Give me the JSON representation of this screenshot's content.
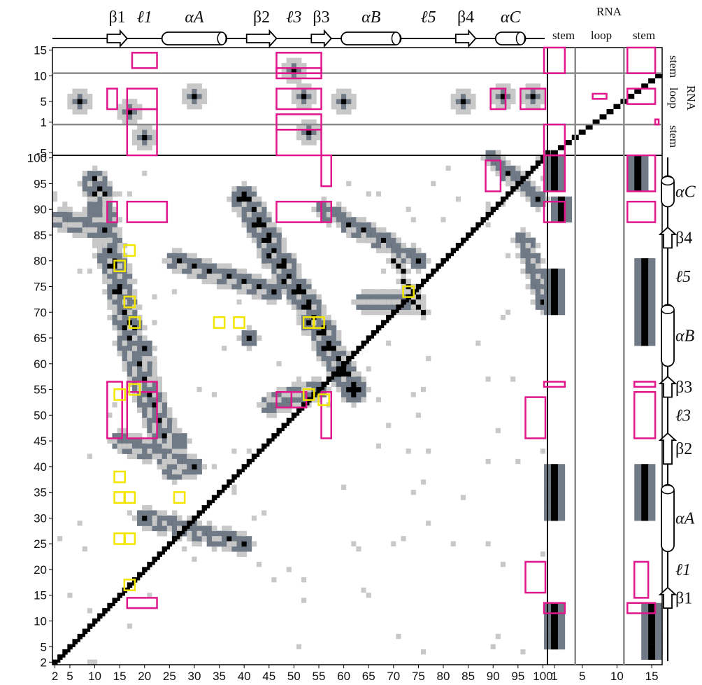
{
  "chart_data": {
    "type": "heatmap",
    "description_of_axes": "protein-residue contact map with RNA contact panels",
    "x_ticks": [
      "2",
      "5",
      "10",
      "15",
      "20",
      "25",
      "30",
      "35",
      "40",
      "45",
      "50",
      "55",
      "60",
      "65",
      "70",
      "75",
      "80",
      "85",
      "90",
      "95",
      "100"
    ],
    "y_ticks": [
      "2",
      "5",
      "10",
      "15",
      "20",
      "25",
      "30",
      "35",
      "40",
      "45",
      "50",
      "55",
      "60",
      "65",
      "70",
      "75",
      "80",
      "85",
      "90",
      "95",
      "100"
    ],
    "rna_x_ticks": [
      "1",
      "5",
      "10",
      "15"
    ],
    "rna_y_ticks": [
      "15",
      "10",
      "5",
      "1",
      "-5"
    ],
    "secondary_structure": [
      {
        "label": "β1",
        "kind": "strand",
        "start": 13,
        "end": 17
      },
      {
        "label": "ℓ1",
        "kind": "loop",
        "start": 18,
        "end": 23
      },
      {
        "label": "αA",
        "kind": "helix",
        "start": 24,
        "end": 37
      },
      {
        "label": "β2",
        "kind": "strand",
        "start": 41,
        "end": 47
      },
      {
        "label": "ℓ3",
        "kind": "loop",
        "start": 48,
        "end": 53
      },
      {
        "label": "β3",
        "kind": "strand",
        "start": 54,
        "end": 58
      },
      {
        "label": "αB",
        "kind": "helix",
        "start": 60,
        "end": 72
      },
      {
        "label": "ℓ5",
        "kind": "loop",
        "start": 74,
        "end": 81
      },
      {
        "label": "β4",
        "kind": "strand",
        "start": 83,
        "end": 87
      },
      {
        "label": "αC",
        "kind": "helix",
        "start": 91,
        "end": 97
      }
    ],
    "rna_regions": [
      "stem",
      "loop",
      "stem"
    ],
    "rna_title": "RNA",
    "contact_levels": [
      "black",
      "dark-gray",
      "light-gray"
    ],
    "upper_triangle_clusters": [
      {
        "i": 88,
        "j": 90,
        "level": "black"
      },
      {
        "i": 90,
        "j": 98,
        "level": "black"
      },
      {
        "i": 75,
        "j": 90,
        "level": "black"
      },
      {
        "i": 74,
        "j": 84,
        "level": "black"
      },
      {
        "i": 56,
        "j": 75,
        "level": "dark-gray"
      },
      {
        "i": 30,
        "j": 42,
        "level": "black"
      }
    ],
    "lower_triangle_clusters": [
      {
        "i": 10,
        "j": 90,
        "level": "dark-gray"
      },
      {
        "i": 13,
        "j": 82,
        "level": "black"
      },
      {
        "i": 20,
        "j": 63,
        "level": "black"
      },
      {
        "i": 41,
        "j": 65,
        "level": "black"
      },
      {
        "i": 27,
        "j": 45,
        "level": "dark-gray"
      },
      {
        "i": 20,
        "j": 30,
        "level": "black"
      }
    ]
  },
  "colors": {
    "black_contact": "#000000",
    "dark_gray_contact": "#6f7a86",
    "light_gray_contact": "#c8c8c8",
    "magenta_box": "#e0168c",
    "yellow_box": "#f2e600",
    "divider_gray": "#8a8a8a"
  }
}
